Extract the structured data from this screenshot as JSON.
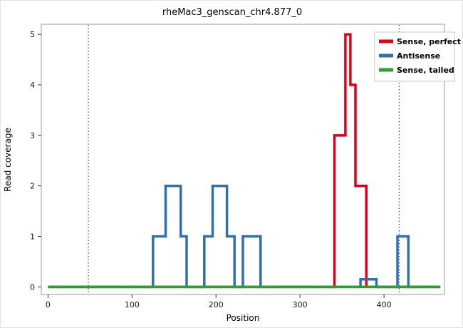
{
  "chart_data": {
    "type": "line",
    "title": "rheMac3_genscan_chr4.877_0",
    "xlabel": "Position",
    "ylabel": "Read coverage",
    "xlim": [
      -8,
      472
    ],
    "ylim": [
      -0.15,
      5.2
    ],
    "xticks": [
      0,
      100,
      200,
      300,
      400
    ],
    "yticks": [
      0,
      1,
      2,
      3,
      4,
      5
    ],
    "grid": "off",
    "vlines": [
      48,
      418
    ],
    "vline_style": "dotted",
    "legend_position": "top-right",
    "panel_border_color": "#9a9a9a",
    "series": [
      {
        "name": "Sense, perfect",
        "color": "#df0018",
        "points": [
          [
            0,
            0
          ],
          [
            341,
            0
          ],
          [
            341,
            3
          ],
          [
            354,
            3
          ],
          [
            354,
            5
          ],
          [
            360,
            5
          ],
          [
            360,
            4
          ],
          [
            366,
            4
          ],
          [
            366,
            2
          ],
          [
            379,
            2
          ],
          [
            379,
            0
          ],
          [
            467,
            0
          ]
        ]
      },
      {
        "name": "Antisense",
        "color": "#3070b0",
        "points": [
          [
            0,
            0
          ],
          [
            125,
            0
          ],
          [
            125,
            1
          ],
          [
            140,
            1
          ],
          [
            140,
            2
          ],
          [
            158,
            2
          ],
          [
            158,
            1
          ],
          [
            165,
            1
          ],
          [
            165,
            0
          ],
          [
            186,
            0
          ],
          [
            186,
            1
          ],
          [
            196,
            1
          ],
          [
            196,
            2
          ],
          [
            213,
            2
          ],
          [
            213,
            1
          ],
          [
            222,
            1
          ],
          [
            222,
            0
          ],
          [
            232,
            0
          ],
          [
            232,
            1
          ],
          [
            253,
            1
          ],
          [
            253,
            0
          ],
          [
            372,
            0
          ],
          [
            372,
            0.15
          ],
          [
            391,
            0.15
          ],
          [
            391,
            0
          ],
          [
            416,
            0
          ],
          [
            416,
            1
          ],
          [
            429,
            1
          ],
          [
            429,
            0
          ],
          [
            467,
            0
          ]
        ]
      },
      {
        "name": "Sense, tailed",
        "color": "#2ca02c",
        "points": [
          [
            0,
            0
          ],
          [
            467,
            0
          ]
        ]
      }
    ]
  }
}
